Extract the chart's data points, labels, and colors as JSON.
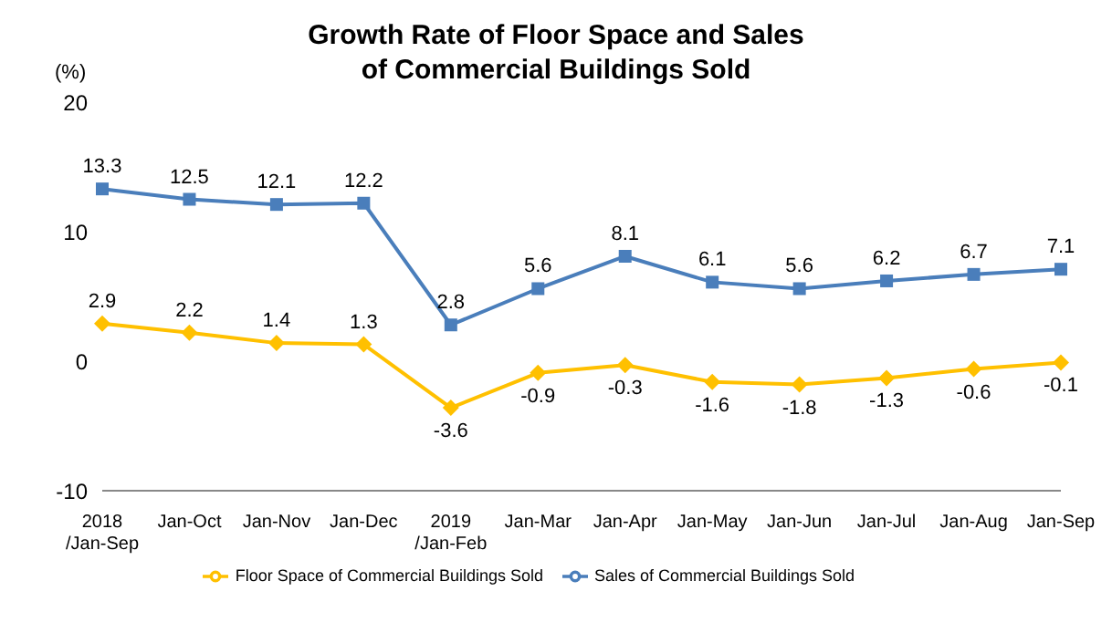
{
  "chart_data": {
    "type": "line",
    "title": "Growth Rate of Floor Space and Sales of Commercial Buildings Sold",
    "ylabel": "(%)",
    "categories": [
      "2018\n/Jan-Sep",
      "Jan-Oct",
      "Jan-Nov",
      "Jan-Dec",
      "2019\n/Jan-Feb",
      "Jan-Mar",
      "Jan-Apr",
      "Jan-May",
      "Jan-Jun",
      "Jan-Jul",
      "Jan-Aug",
      "Jan-Sep"
    ],
    "series": [
      {
        "name": "Floor Space of Commercial Buildings Sold",
        "color": "#ffc000",
        "marker": "diamond",
        "values": [
          2.9,
          2.2,
          1.4,
          1.3,
          -3.6,
          -0.9,
          -0.3,
          -1.6,
          -1.8,
          -1.3,
          -0.6,
          -0.1
        ]
      },
      {
        "name": "Sales of Commercial Buildings Sold",
        "color": "#4a7ebb",
        "marker": "square",
        "values": [
          13.3,
          12.5,
          12.1,
          12.2,
          2.8,
          5.6,
          8.1,
          6.1,
          5.6,
          6.2,
          6.7,
          7.1
        ]
      }
    ],
    "ylim": [
      -10,
      20
    ],
    "yticks": [
      -10,
      0,
      10,
      20
    ],
    "grid": false,
    "legend": "bottom",
    "data_labels": true,
    "line_style": "solid"
  }
}
